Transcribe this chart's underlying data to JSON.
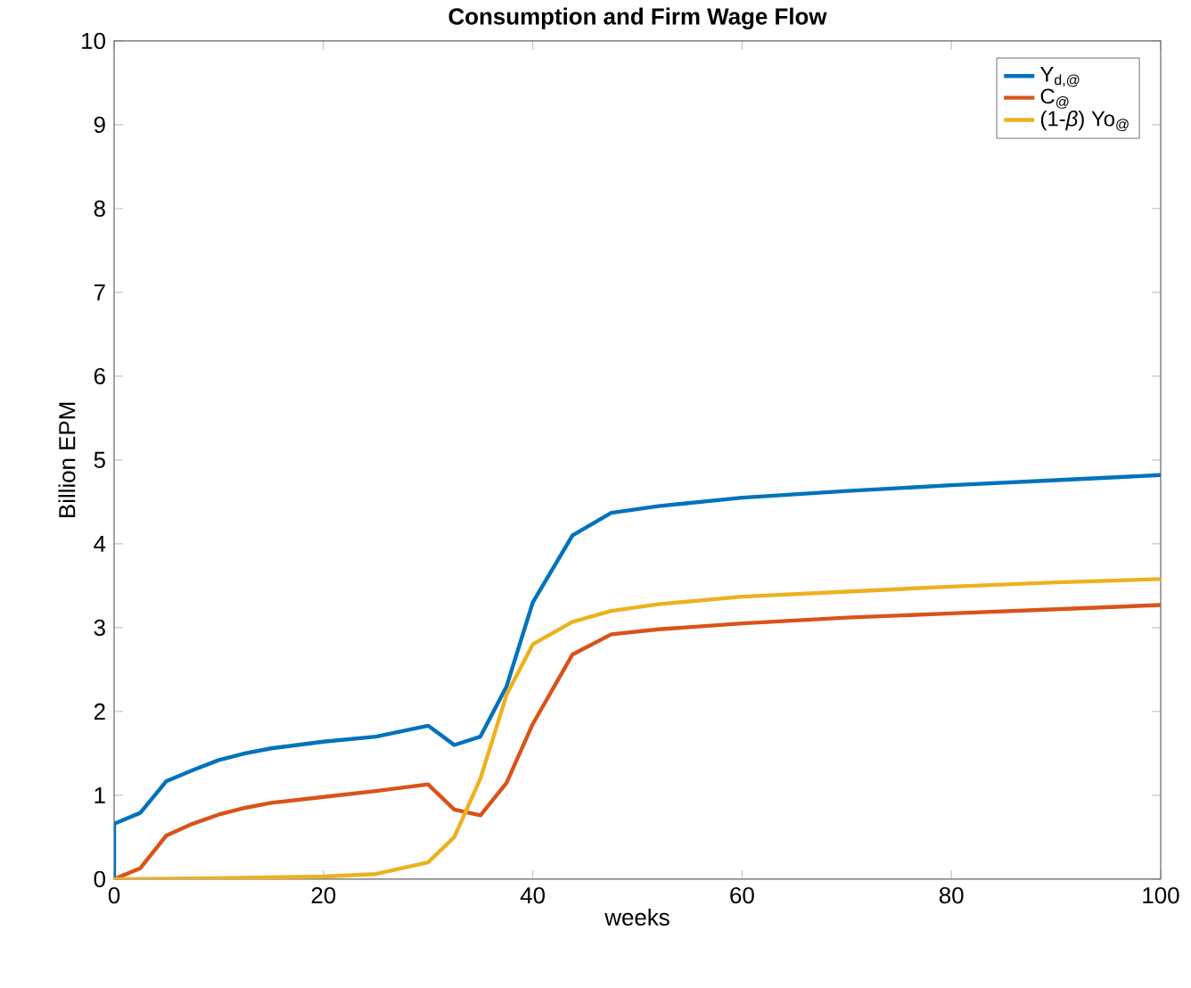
{
  "chart_data": {
    "type": "line",
    "title": "Consumption and Firm Wage Flow",
    "xlabel": "weeks",
    "ylabel": "Billion EPM",
    "xlim": [
      0,
      100
    ],
    "ylim": [
      0,
      10
    ],
    "xticks": [
      0,
      20,
      40,
      60,
      80,
      100
    ],
    "yticks": [
      0,
      1,
      2,
      3,
      4,
      5,
      6,
      7,
      8,
      9,
      10
    ],
    "grid": false,
    "legend": "top right",
    "marker": "none",
    "line_style": "solid",
    "series": [
      {
        "name": "Y$_{d,@}$",
        "color": "#0072bd",
        "x": [
          0,
          0,
          2.5,
          5,
          7.5,
          10,
          12.5,
          15,
          17.5,
          20,
          25,
          30,
          32.5,
          35,
          37.5,
          40,
          43.8,
          47.5,
          52,
          60,
          70,
          80,
          90,
          100
        ],
        "values": [
          0,
          0.66,
          0.79,
          1.17,
          1.3,
          1.42,
          1.5,
          1.56,
          1.6,
          1.64,
          1.7,
          1.83,
          1.6,
          1.7,
          2.3,
          3.3,
          4.1,
          4.37,
          4.45,
          4.55,
          4.63,
          4.7,
          4.76,
          4.82
        ]
      },
      {
        "name": "C$_{@}$",
        "color": "#d95319",
        "x": [
          0,
          2.5,
          5,
          7.5,
          10,
          12.5,
          15,
          20,
          25,
          30,
          32.5,
          35,
          37.5,
          40,
          43.8,
          47.5,
          52,
          60,
          70,
          80,
          90,
          100
        ],
        "values": [
          0,
          0.13,
          0.52,
          0.66,
          0.77,
          0.85,
          0.91,
          0.98,
          1.05,
          1.13,
          0.83,
          0.76,
          1.15,
          1.85,
          2.68,
          2.92,
          2.98,
          3.05,
          3.12,
          3.17,
          3.22,
          3.27
        ]
      },
      {
        "name": "(1-*β*) Yo$_{@}$",
        "color": "#edb120",
        "x": [
          0,
          10,
          20,
          25,
          30,
          32.5,
          35,
          37.5,
          40,
          43.8,
          47.5,
          52,
          60,
          70,
          80,
          90,
          100
        ],
        "values": [
          0,
          0.01,
          0.03,
          0.06,
          0.2,
          0.5,
          1.2,
          2.2,
          2.8,
          3.07,
          3.2,
          3.28,
          3.37,
          3.43,
          3.49,
          3.54,
          3.58
        ]
      }
    ]
  }
}
